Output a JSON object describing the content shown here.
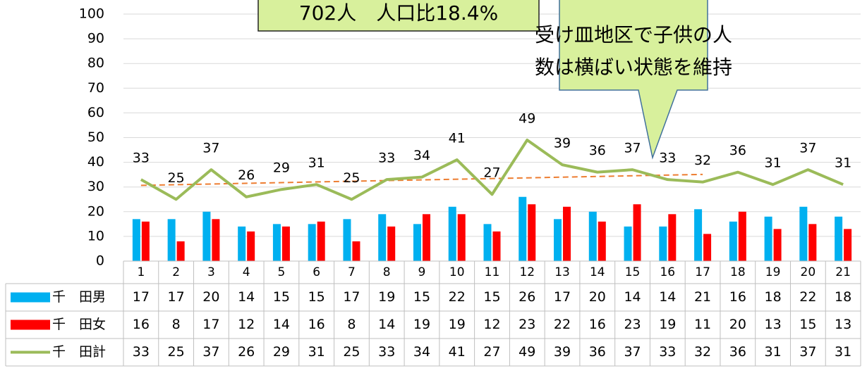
{
  "chart_data": {
    "type": "bar-line",
    "annotations": [
      "702人　人口比18.4%",
      "受け皿地区で子供の人",
      "数は横ばい状態を維持"
    ],
    "categories": [
      "1",
      "2",
      "3",
      "4",
      "5",
      "6",
      "7",
      "8",
      "9",
      "10",
      "11",
      "12",
      "13",
      "14",
      "15",
      "16",
      "17",
      "18",
      "19",
      "20",
      "21"
    ],
    "series": [
      {
        "name": "千　田男",
        "color": "#00b0f0",
        "type": "bar",
        "values": [
          17,
          17,
          20,
          14,
          15,
          15,
          17,
          19,
          15,
          22,
          15,
          26,
          17,
          20,
          14,
          14,
          21,
          16,
          18,
          22,
          18
        ]
      },
      {
        "name": "千　田女",
        "color": "#ff0000",
        "type": "bar",
        "values": [
          16,
          8,
          17,
          12,
          14,
          16,
          8,
          14,
          19,
          19,
          12,
          23,
          22,
          16,
          23,
          19,
          11,
          20,
          13,
          15,
          13
        ]
      },
      {
        "name": "千　田計",
        "color": "#9bbb59",
        "type": "line",
        "values": [
          33,
          25,
          37,
          26,
          29,
          31,
          25,
          33,
          34,
          41,
          27,
          49,
          39,
          36,
          37,
          33,
          32,
          36,
          31,
          37,
          31
        ]
      }
    ],
    "ylim": [
      0,
      100
    ],
    "yticks": [
      0,
      10,
      20,
      30,
      40,
      50,
      60,
      70,
      80,
      90,
      100
    ],
    "grid": true,
    "trendline": true,
    "data_table": true
  }
}
